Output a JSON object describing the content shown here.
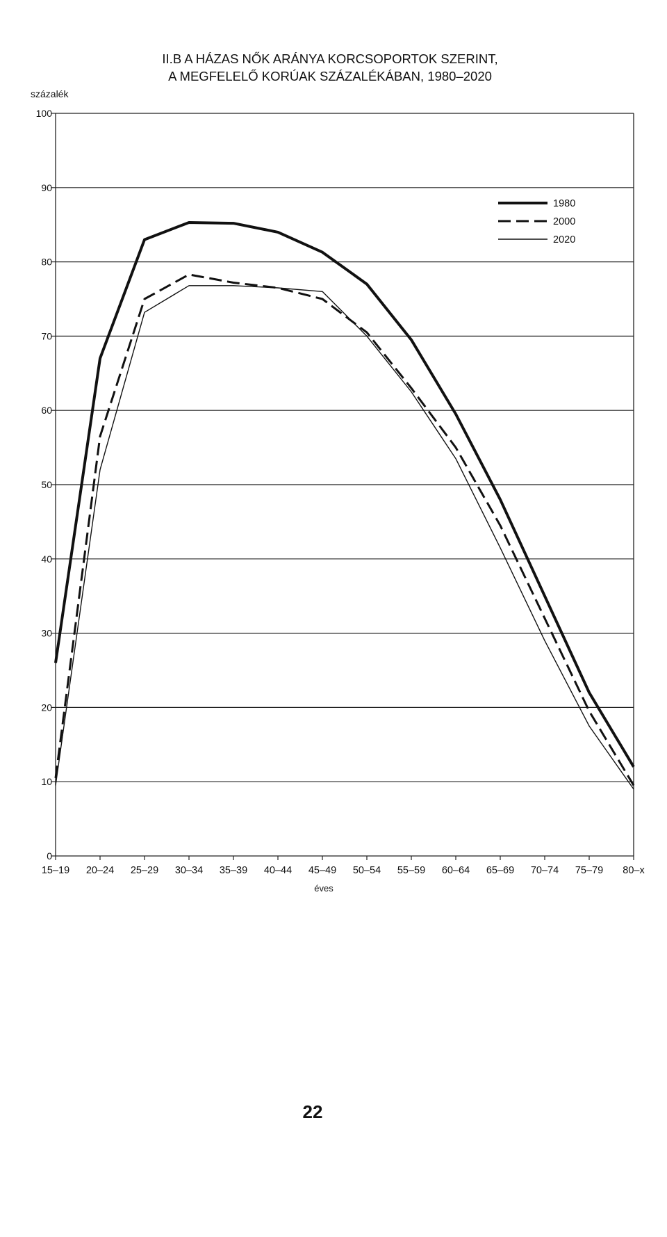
{
  "page": {
    "page_number": "22"
  },
  "chart_data": {
    "type": "line",
    "title_lines": [
      "II.B A HÁZAS NŐK ARÁNYA KORCSOPORTOK SZERINT,",
      "A MEGFELELŐ KORÚAK SZÁZALÉKÁBAN, 1980–2020"
    ],
    "ylabel": "százalék",
    "xlabel": "éves",
    "ylim": [
      0,
      100
    ],
    "yticks": [
      0,
      10,
      20,
      30,
      40,
      50,
      60,
      70,
      80,
      90,
      100
    ],
    "grid": true,
    "legend_position": "top-right",
    "categories": [
      "15–19",
      "20–24",
      "25–29",
      "30–34",
      "35–39",
      "40–44",
      "45–49",
      "50–54",
      "55–59",
      "60–64",
      "65–69",
      "70–74",
      "75–79",
      "80–x"
    ],
    "series": [
      {
        "name": "1980",
        "style": "thick-solid",
        "color": "#111111",
        "values": [
          26,
          67,
          83,
          85.3,
          85.2,
          84,
          81.3,
          77,
          69.5,
          59.5,
          48,
          35,
          22,
          12
        ]
      },
      {
        "name": "2000",
        "style": "dashed",
        "color": "#111111",
        "values": [
          10.5,
          56.5,
          75,
          78.3,
          77.2,
          76.5,
          75,
          70.5,
          63,
          55,
          44.5,
          32,
          19.5,
          9.5
        ]
      },
      {
        "name": "2020",
        "style": "thin-solid",
        "color": "#111111",
        "values": [
          9.5,
          52,
          73.2,
          76.8,
          76.8,
          76.5,
          76,
          70,
          62.5,
          53.5,
          41.5,
          29,
          17.5,
          9
        ]
      }
    ]
  }
}
